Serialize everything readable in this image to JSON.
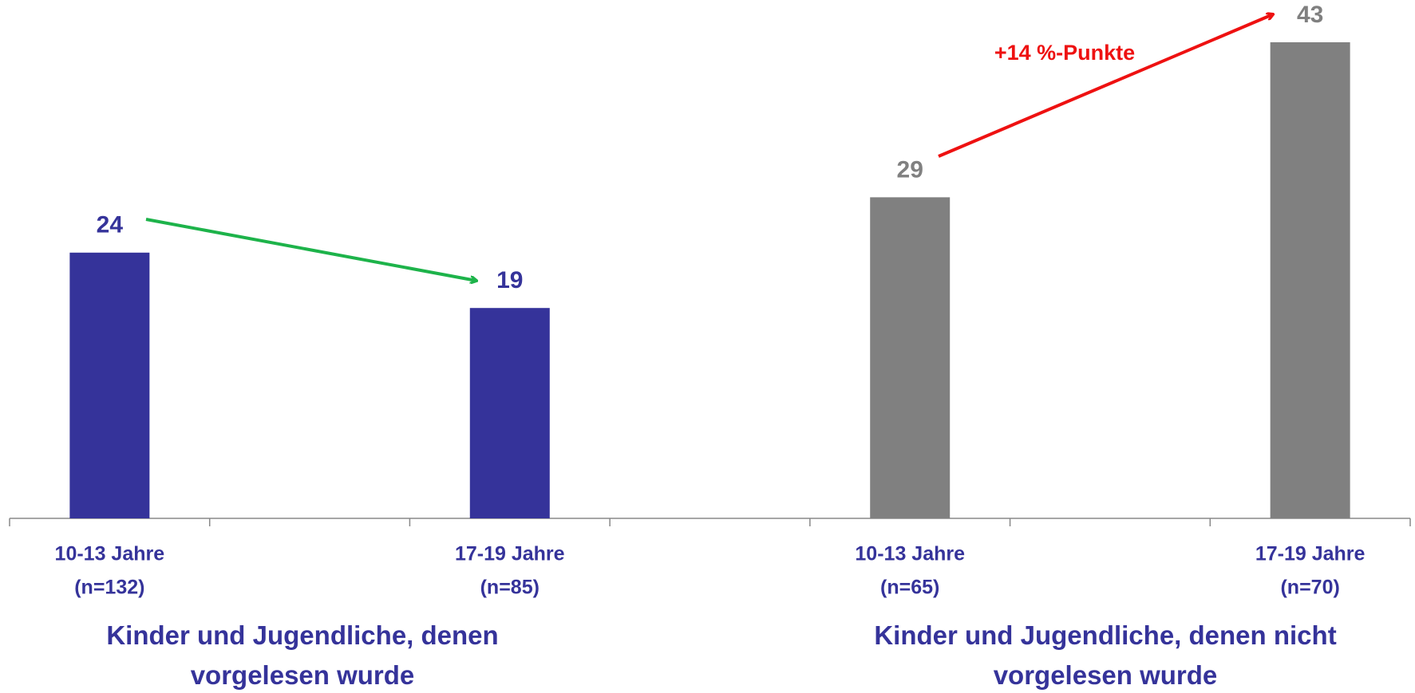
{
  "chart_data": {
    "type": "bar",
    "categories": [
      "10-13 Jahre",
      "17-19 Jahre",
      "10-13 Jahre",
      "17-19 Jahre"
    ],
    "sample_sizes": [
      "(n=132)",
      "(n=85)",
      "(n=65)",
      "(n=70)"
    ],
    "values": [
      24,
      19,
      29,
      43
    ],
    "colors": [
      "#35339a",
      "#35339a",
      "#808080",
      "#808080"
    ],
    "groups": [
      "Kinder und Jugendliche, denen vorgelesen wurde",
      "Kinder und Jugendliche, denen nicht vorgelesen wurde"
    ],
    "annotation": "+14 %-Punkte",
    "grid": false
  }
}
